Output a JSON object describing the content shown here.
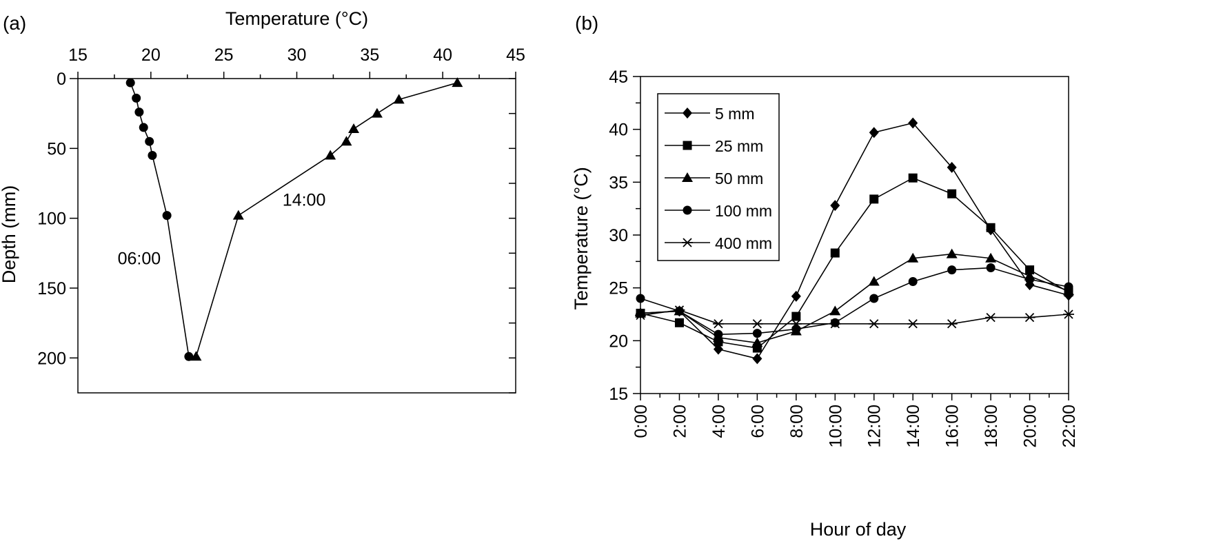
{
  "panels": {
    "a": {
      "label": "(a)"
    },
    "b": {
      "label": "(b)"
    }
  },
  "chart_data": [
    {
      "type": "scatter",
      "panel": "(a)",
      "title": "",
      "xlabel": "Temperature (°C)",
      "ylabel": "Depth (mm)",
      "xaxis_position": "top",
      "yaxis_inverted": true,
      "xlim": [
        15,
        45
      ],
      "ylim": [
        0,
        225
      ],
      "xticks": [
        15,
        20,
        25,
        30,
        35,
        40,
        45
      ],
      "yticks": [
        0,
        50,
        100,
        150,
        200
      ],
      "grid": false,
      "legend": "none",
      "series": [
        {
          "name": "06:00",
          "marker": "circle",
          "points": [
            [
              18.6,
              3
            ],
            [
              19.0,
              14
            ],
            [
              19.2,
              24
            ],
            [
              19.5,
              35
            ],
            [
              19.9,
              45
            ],
            [
              20.1,
              55
            ],
            [
              21.1,
              98
            ],
            [
              22.6,
              199
            ]
          ]
        },
        {
          "name": "14:00",
          "marker": "triangle",
          "points": [
            [
              41.0,
              3
            ],
            [
              37.0,
              15
            ],
            [
              35.5,
              25
            ],
            [
              33.9,
              36
            ],
            [
              33.4,
              45
            ],
            [
              32.3,
              55
            ],
            [
              26.0,
              98
            ],
            [
              23.1,
              199
            ]
          ]
        }
      ],
      "annotations": [
        {
          "text": "06:00",
          "x": 19.2,
          "y": 133
        },
        {
          "text": "14:00",
          "x": 30.5,
          "y": 91
        }
      ]
    },
    {
      "type": "line",
      "panel": "(b)",
      "title": "",
      "xlabel": "Hour of day",
      "ylabel": "Temperature (°C)",
      "x": [
        "0:00",
        "2:00",
        "4:00",
        "6:00",
        "8:00",
        "10:00",
        "12:00",
        "14:00",
        "16:00",
        "18:00",
        "20:00",
        "22:00"
      ],
      "ylim": [
        15,
        45
      ],
      "yticks": [
        15,
        20,
        25,
        30,
        35,
        40,
        45
      ],
      "grid": false,
      "legend": "top-left",
      "series": [
        {
          "name": "5 mm",
          "marker": "diamond",
          "values": [
            22.6,
            22.8,
            19.2,
            18.3,
            24.2,
            32.8,
            39.7,
            40.6,
            36.4,
            30.5,
            25.3,
            24.3
          ]
        },
        {
          "name": "25 mm",
          "marker": "square",
          "values": [
            22.6,
            21.7,
            19.9,
            19.3,
            22.3,
            28.3,
            33.4,
            35.4,
            33.9,
            30.7,
            26.7,
            24.6
          ]
        },
        {
          "name": "50 mm",
          "marker": "triangle",
          "values": [
            22.6,
            22.8,
            20.3,
            19.8,
            20.9,
            22.8,
            25.6,
            27.8,
            28.2,
            27.8,
            26.1,
            24.7
          ]
        },
        {
          "name": "100 mm",
          "marker": "circle",
          "values": [
            24.0,
            22.8,
            20.6,
            20.7,
            21.1,
            21.7,
            24.0,
            25.6,
            26.7,
            26.9,
            25.8,
            25.1
          ]
        },
        {
          "name": "400 mm",
          "marker": "asterisk",
          "values": [
            22.4,
            22.9,
            21.6,
            21.6,
            21.6,
            21.6,
            21.6,
            21.6,
            21.6,
            22.2,
            22.2,
            22.5
          ]
        }
      ]
    }
  ]
}
